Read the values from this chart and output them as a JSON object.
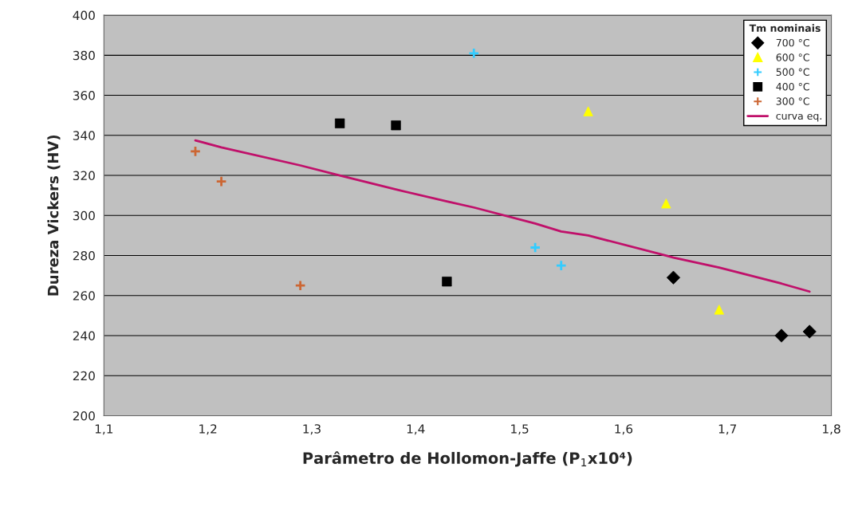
{
  "chart_data": {
    "type": "scatter",
    "xlabel": "Parâmetro de Hollomon-Jaffe (P$_{1}$x10⁴)",
    "ylabel": "Dureza Vickers (HV)",
    "legend_title": "Tm nominais",
    "legend": "top right",
    "grid": "y",
    "xlim": [
      1.1,
      1.8
    ],
    "xticks": [
      {
        "value": 1.1,
        "label": "1,1"
      },
      {
        "value": 1.2,
        "label": "1,2"
      },
      {
        "value": 1.3,
        "label": "1,3"
      },
      {
        "value": 1.4,
        "label": "1,4"
      },
      {
        "value": 1.5,
        "label": "1,5"
      },
      {
        "value": 1.6,
        "label": "1,6"
      },
      {
        "value": 1.7,
        "label": "1,7"
      },
      {
        "value": 1.8,
        "label": "1,8"
      }
    ],
    "ylim": [
      200,
      400
    ],
    "yticks": [
      200,
      220,
      240,
      260,
      280,
      300,
      320,
      340,
      360,
      380,
      400
    ],
    "series": [
      {
        "name": "700 °C",
        "marker": "diamond",
        "color": "#000000",
        "x": [
          1.648,
          1.752,
          1.779
        ],
        "values": [
          269,
          240,
          242
        ]
      },
      {
        "name": "600 °C",
        "marker": "triangle",
        "color": "#ffff00",
        "x": [
          1.566,
          1.641,
          1.692
        ],
        "values": [
          352,
          306,
          253
        ]
      },
      {
        "name": "500 °C",
        "marker": "cross",
        "color": "#33ccff",
        "x": [
          1.456,
          1.515,
          1.54
        ],
        "values": [
          381,
          284,
          275
        ]
      },
      {
        "name": "400 °C",
        "marker": "square",
        "color": "#000000",
        "x": [
          1.327,
          1.381,
          1.43
        ],
        "values": [
          346,
          345,
          267
        ]
      },
      {
        "name": "300 °C",
        "marker": "cross",
        "color": "#cc6633",
        "x": [
          1.188,
          1.213,
          1.289
        ],
        "values": [
          332,
          317,
          265
        ]
      },
      {
        "name": "curva eq.",
        "type": "line",
        "marker": "none",
        "color": "#c0106a",
        "x": [
          1.188,
          1.213,
          1.289,
          1.327,
          1.381,
          1.43,
          1.456,
          1.515,
          1.54,
          1.566,
          1.641,
          1.648,
          1.692,
          1.752,
          1.779
        ],
        "values": [
          337.5,
          334,
          325,
          320,
          313,
          307,
          304,
          296,
          292,
          290,
          280,
          279,
          274,
          266,
          262
        ]
      }
    ]
  }
}
